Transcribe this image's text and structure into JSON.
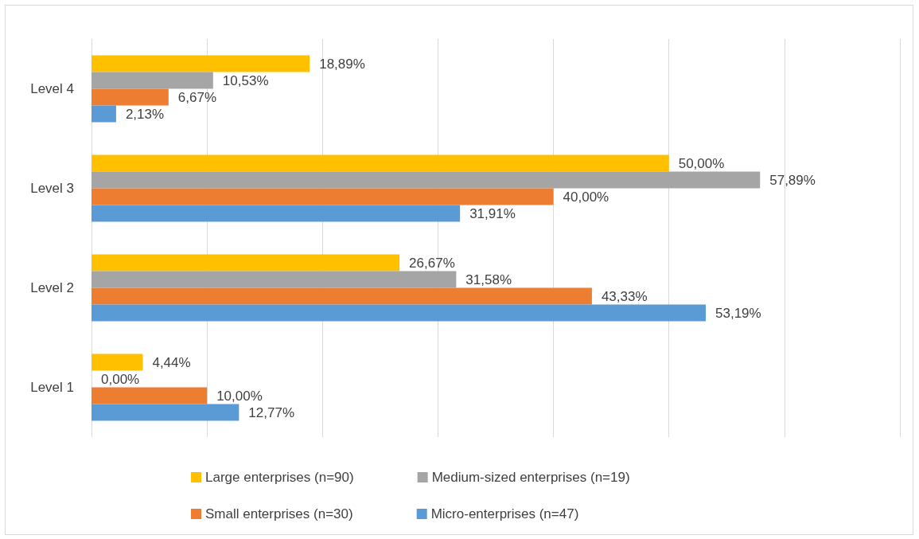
{
  "chart_data": {
    "type": "bar",
    "orientation": "horizontal",
    "categories": [
      "Level 4",
      "Level 3",
      "Level 2",
      "Level 1"
    ],
    "series": [
      {
        "name": "Large enterprises (n=90)",
        "color": "#ffc000",
        "values": [
          18.89,
          50.0,
          26.67,
          4.44
        ],
        "value_labels": [
          "18,89%",
          "50,00%",
          "26,67%",
          "4,44%"
        ]
      },
      {
        "name": "Medium-sized enterprises (n=19)",
        "color": "#a5a5a5",
        "values": [
          10.53,
          57.89,
          31.58,
          0.0
        ],
        "value_labels": [
          "10,53%",
          "57,89%",
          "31,58%",
          "0,00%"
        ]
      },
      {
        "name": "Small enterprises (n=30)",
        "color": "#ed7d31",
        "values": [
          6.67,
          40.0,
          43.33,
          10.0
        ],
        "value_labels": [
          "6,67%",
          "40,00%",
          "43,33%",
          "10,00%"
        ]
      },
      {
        "name": "Micro-enterprises (n=47)",
        "color": "#5b9bd5",
        "values": [
          2.13,
          31.91,
          53.19,
          12.77
        ],
        "value_labels": [
          "2,13%",
          "31,91%",
          "53,19%",
          "12,77%"
        ]
      }
    ],
    "xlim": [
      0,
      70
    ],
    "xticks": [
      {
        "value": 0,
        "label": null
      },
      {
        "value": 10,
        "label": null
      },
      {
        "value": 20,
        "label": null
      },
      {
        "value": 30,
        "label": null
      },
      {
        "value": 40,
        "label": null
      },
      {
        "value": 50,
        "label": null
      },
      {
        "value": 60,
        "label": null
      },
      {
        "value": 70,
        "label": null
      }
    ],
    "tick_labels": "y",
    "grid": "x",
    "legend": "bottom"
  }
}
